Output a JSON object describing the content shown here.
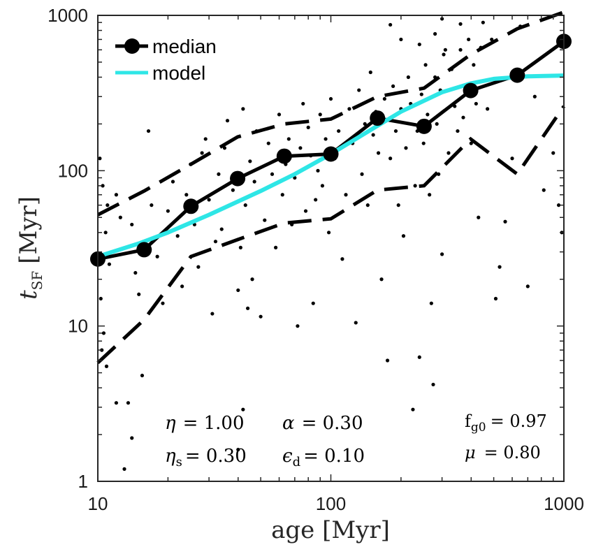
{
  "chart_data": {
    "type": "line",
    "xscale": "log",
    "yscale": "log",
    "xlim": [
      10,
      1000
    ],
    "ylim": [
      1,
      1000
    ],
    "xlabel": "age [Myr]",
    "ylabel_main": "t",
    "ylabel_sub": "SF",
    "ylabel_unit": "[Myr]",
    "xticks": [
      10,
      100,
      1000
    ],
    "yticks": [
      1,
      10,
      100,
      1000
    ],
    "xtick_labels": [
      "10",
      "100",
      "1000"
    ],
    "ytick_labels": [
      "1",
      "10",
      "100",
      "1000"
    ],
    "legend": {
      "position": "top-left",
      "entries": [
        {
          "label": "median",
          "color": "#000000",
          "marker": "circle",
          "style": "solid"
        },
        {
          "label": "model",
          "color": "#2ee6e6",
          "style": "solid"
        }
      ]
    },
    "series": [
      {
        "name": "median",
        "color": "#000000",
        "x": [
          10,
          15.8,
          25.1,
          39.8,
          63.1,
          100,
          158.5,
          251.2,
          398.1,
          631,
          1000
        ],
        "y": [
          27,
          31,
          59,
          89,
          124,
          128,
          218,
          193,
          328,
          412,
          680
        ]
      },
      {
        "name": "model",
        "color": "#2ee6e6",
        "x": [
          10,
          15,
          20,
          30,
          50,
          70,
          100,
          150,
          200,
          300,
          400,
          500,
          700,
          1000
        ],
        "y": [
          28,
          34,
          40,
          52,
          74,
          95,
          128,
          185,
          240,
          320,
          365,
          390,
          405,
          410
        ]
      },
      {
        "name": "upper percentile",
        "color": "#000000",
        "style": "dashed",
        "x": [
          10,
          15.8,
          25.1,
          39.8,
          63.1,
          100,
          158.5,
          251.2,
          398.1,
          631,
          1000
        ],
        "y": [
          52,
          74,
          110,
          165,
          200,
          215,
          300,
          340,
          560,
          820,
          1050
        ]
      },
      {
        "name": "lower percentile",
        "color": "#000000",
        "style": "dashed",
        "x": [
          10,
          15.8,
          25.1,
          39.8,
          63.1,
          100,
          158.5,
          251.2,
          398.1,
          631,
          1000
        ],
        "y": [
          5.8,
          11,
          28,
          36,
          46,
          49,
          75,
          80,
          160,
          95,
          260
        ]
      },
      {
        "name": "individual data points",
        "type": "scatter",
        "color": "#000000",
        "points": [
          [
            10.2,
            120
          ],
          [
            10.5,
            80
          ],
          [
            10.8,
            40
          ],
          [
            11,
            60
          ],
          [
            11.2,
            25
          ],
          [
            10.3,
            15
          ],
          [
            10.6,
            9
          ],
          [
            10.4,
            7
          ],
          [
            10.9,
            5.5
          ],
          [
            11.5,
            30
          ],
          [
            12,
            70
          ],
          [
            12.5,
            50
          ],
          [
            13,
            1.2
          ],
          [
            13.5,
            3.2
          ],
          [
            14,
            45
          ],
          [
            14.5,
            22
          ],
          [
            15,
            16
          ],
          [
            15.5,
            4.8
          ],
          [
            16,
            35
          ],
          [
            16.5,
            180
          ],
          [
            17,
            60
          ],
          [
            18,
            28
          ],
          [
            19,
            14
          ],
          [
            20,
            55
          ],
          [
            21,
            85
          ],
          [
            22,
            38
          ],
          [
            23,
            18
          ],
          [
            24,
            70
          ],
          [
            25,
            110
          ],
          [
            26,
            45
          ],
          [
            27,
            24
          ],
          [
            28,
            130
          ],
          [
            29,
            160
          ],
          [
            30,
            65
          ],
          [
            31,
            12
          ],
          [
            32,
            35
          ],
          [
            33,
            95
          ],
          [
            34,
            42
          ],
          [
            35,
            140
          ],
          [
            36,
            210
          ],
          [
            38,
            75
          ],
          [
            40,
            17
          ],
          [
            41,
            32
          ],
          [
            42,
            250
          ],
          [
            43,
            60
          ],
          [
            44,
            13
          ],
          [
            45,
            115
          ],
          [
            46,
            20
          ],
          [
            47,
            85
          ],
          [
            48,
            180
          ],
          [
            50,
            11.5
          ],
          [
            52,
            48
          ],
          [
            54,
            150
          ],
          [
            56,
            95
          ],
          [
            58,
            32
          ],
          [
            60,
            230
          ],
          [
            62,
            70
          ],
          [
            64,
            110
          ],
          [
            66,
            160
          ],
          [
            68,
            45
          ],
          [
            70,
            90
          ],
          [
            72,
            10
          ],
          [
            74,
            140
          ],
          [
            76,
            270
          ],
          [
            78,
            55
          ],
          [
            80,
            190
          ],
          [
            82,
            125
          ],
          [
            84,
            14
          ],
          [
            86,
            65
          ],
          [
            88,
            100
          ],
          [
            90,
            230
          ],
          [
            92,
            80
          ],
          [
            95,
            160
          ],
          [
            98,
            40
          ],
          [
            100,
            290
          ],
          [
            104,
            120
          ],
          [
            108,
            180
          ],
          [
            112,
            27
          ],
          [
            116,
            70
          ],
          [
            120,
            250
          ],
          [
            124,
            150
          ],
          [
            128,
            10.5
          ],
          [
            132,
            330
          ],
          [
            136,
            95
          ],
          [
            140,
            200
          ],
          [
            144,
            60
          ],
          [
            148,
            430
          ],
          [
            152,
            170
          ],
          [
            156,
            240
          ],
          [
            160,
            130
          ],
          [
            165,
            20
          ],
          [
            170,
            290
          ],
          [
            175,
            6
          ],
          [
            180,
            120
          ],
          [
            185,
            350
          ],
          [
            190,
            180
          ],
          [
            195,
            60
          ],
          [
            200,
            250
          ],
          [
            205,
            38
          ],
          [
            210,
            140
          ],
          [
            215,
            400
          ],
          [
            220,
            270
          ],
          [
            225,
            2.9
          ],
          [
            230,
            80
          ],
          [
            235,
            180
          ],
          [
            240,
            6.3
          ],
          [
            245,
            310
          ],
          [
            250,
            150
          ],
          [
            255,
            480
          ],
          [
            260,
            230
          ],
          [
            265,
            70
          ],
          [
            270,
            14
          ],
          [
            275,
            4.2
          ],
          [
            280,
            400
          ],
          [
            285,
            200
          ],
          [
            290,
            95
          ],
          [
            295,
            330
          ],
          [
            300,
            29
          ],
          [
            305,
            560
          ],
          [
            310,
            600
          ],
          [
            320,
            130
          ],
          [
            330,
            450
          ],
          [
            340,
            260
          ],
          [
            350,
            180
          ],
          [
            360,
            600
          ],
          [
            370,
            220
          ],
          [
            380,
            320
          ],
          [
            390,
            700
          ],
          [
            400,
            150
          ],
          [
            410,
            480
          ],
          [
            420,
            270
          ],
          [
            430,
            50
          ],
          [
            440,
            620
          ],
          [
            450,
            900
          ],
          [
            470,
            250
          ],
          [
            490,
            700
          ],
          [
            510,
            15
          ],
          [
            530,
            24
          ],
          [
            560,
            47
          ],
          [
            600,
            120
          ],
          [
            650,
            850
          ],
          [
            700,
            18
          ],
          [
            750,
            300
          ],
          [
            820,
            75
          ],
          [
            900,
            130
          ],
          [
            950,
            60
          ],
          [
            980,
            40
          ],
          [
            42,
            2.9
          ],
          [
            40,
            1.6
          ],
          [
            14,
            1.9
          ],
          [
            12,
            3.2
          ],
          [
            180,
            870
          ],
          [
            200,
            700
          ],
          [
            240,
            650
          ],
          [
            300,
            950
          ],
          [
            360,
            880
          ],
          [
            280,
            760
          ]
        ]
      }
    ],
    "annotations": [
      {
        "symbol": "η",
        "sub": "",
        "value": "= 1.00"
      },
      {
        "symbol": "α",
        "sub": "",
        "value": "= 0.30"
      },
      {
        "symbol": "f",
        "sub": "g0",
        "value": "= 0.97"
      },
      {
        "symbol": "η",
        "sub": "s",
        "value": "= 0.30"
      },
      {
        "symbol": "ϵ",
        "sub": "d",
        "value": "= 0.10"
      },
      {
        "symbol": "μ",
        "sub": "",
        "value": "= 0.80"
      }
    ]
  }
}
